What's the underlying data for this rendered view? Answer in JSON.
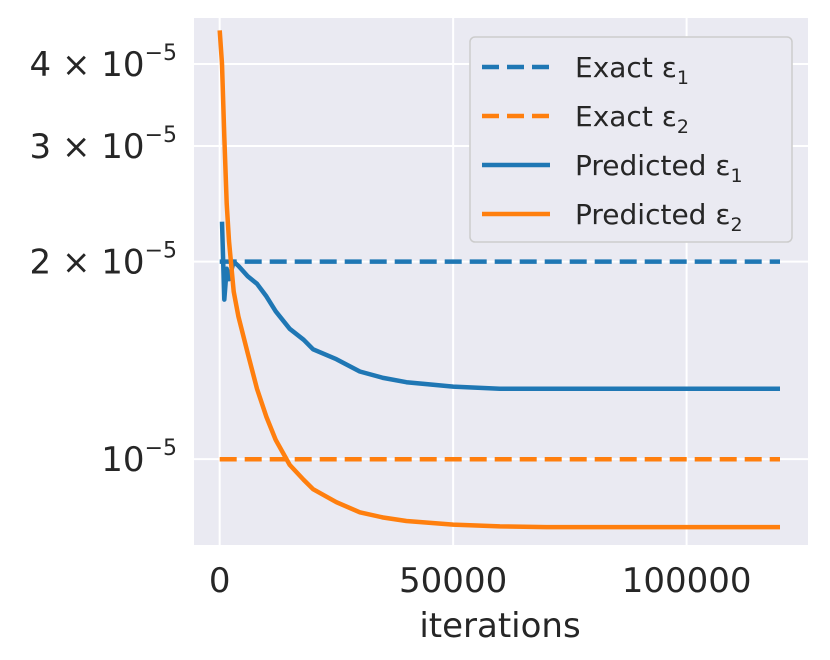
{
  "chart_data": {
    "type": "line",
    "title": "",
    "xlabel": "iterations",
    "ylabel": "",
    "y_scale": "log",
    "xlim": [
      -5500,
      126000
    ],
    "ylim": [
      7.4e-06,
      4.7e-05
    ],
    "grid": true,
    "legend_position": "top-right",
    "x_ticks": [
      {
        "value": 0,
        "label": "0"
      },
      {
        "value": 50000,
        "label": "50000"
      },
      {
        "value": 100000,
        "label": "100000"
      }
    ],
    "y_ticks": [
      {
        "value": 1e-05,
        "mant": "",
        "base": "10",
        "exp": "−5"
      },
      {
        "value": 2e-05,
        "mant": "2 × ",
        "base": "10",
        "exp": "−5"
      },
      {
        "value": 3e-05,
        "mant": "3 × ",
        "base": "10",
        "exp": "−5"
      },
      {
        "value": 4e-05,
        "mant": "4 × ",
        "base": "10",
        "exp": "−5"
      }
    ],
    "series": [
      {
        "name": "Exact ε₁",
        "label_main": "Exact ε",
        "label_sub": "1",
        "color": "#1f77b4",
        "style": "dashed",
        "x": [
          0,
          120000
        ],
        "y": [
          2e-05,
          2e-05
        ]
      },
      {
        "name": "Exact ε₂",
        "label_main": "Exact ε",
        "label_sub": "2",
        "color": "#ff7f0e",
        "style": "dashed",
        "x": [
          0,
          120000
        ],
        "y": [
          1e-05,
          1e-05
        ]
      },
      {
        "name": "Predicted ε₁",
        "label_main": "Predicted ε",
        "label_sub": "1",
        "color": "#1f77b4",
        "style": "solid",
        "x": [
          500,
          1000,
          1500,
          2000,
          3000,
          4000,
          6000,
          8000,
          10000,
          12000,
          15000,
          18000,
          20000,
          25000,
          30000,
          35000,
          40000,
          50000,
          60000,
          80000,
          100000,
          120000
        ],
        "y": [
          2.3e-05,
          1.75e-05,
          1.95e-05,
          1.88e-05,
          2e-05,
          1.97e-05,
          1.9e-05,
          1.85e-05,
          1.77e-05,
          1.68e-05,
          1.58e-05,
          1.52e-05,
          1.47e-05,
          1.42e-05,
          1.36e-05,
          1.33e-05,
          1.31e-05,
          1.29e-05,
          1.28e-05,
          1.28e-05,
          1.28e-05,
          1.28e-05
        ]
      },
      {
        "name": "Predicted ε₂",
        "label_main": "Predicted ε",
        "label_sub": "2",
        "color": "#ff7f0e",
        "style": "solid",
        "x": [
          0,
          500,
          1000,
          1500,
          2000,
          3000,
          4000,
          6000,
          8000,
          10000,
          12000,
          15000,
          18000,
          20000,
          25000,
          30000,
          35000,
          40000,
          50000,
          60000,
          70000,
          80000,
          100000,
          120000
        ],
        "y": [
          4.5e-05,
          4e-05,
          3.1e-05,
          2.45e-05,
          2.15e-05,
          1.8e-05,
          1.65e-05,
          1.45e-05,
          1.28e-05,
          1.16e-05,
          1.07e-05,
          9.8e-06,
          9.3e-06,
          9e-06,
          8.6e-06,
          8.3e-06,
          8.15e-06,
          8.05e-06,
          7.95e-06,
          7.9e-06,
          7.88e-06,
          7.88e-06,
          7.88e-06,
          7.88e-06
        ]
      }
    ]
  }
}
